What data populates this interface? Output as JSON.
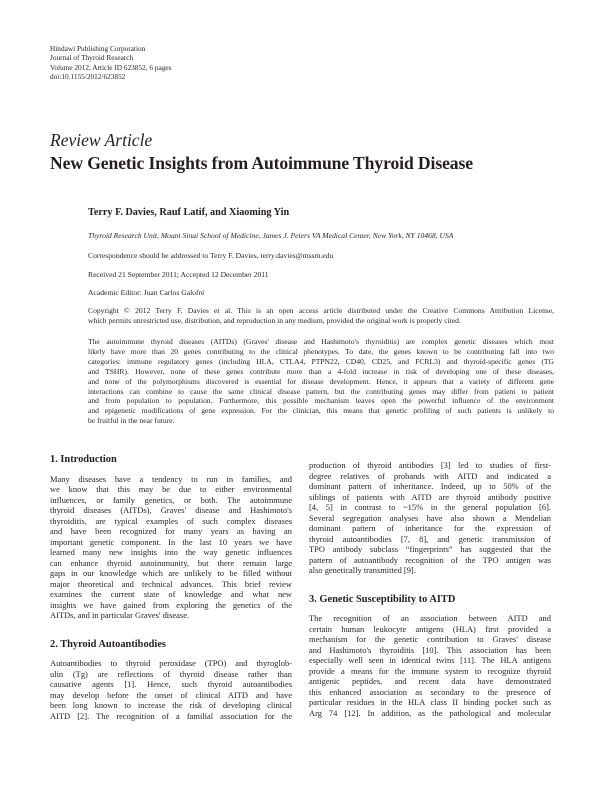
{
  "masthead": {
    "publisher": "Hindawi Publishing Corporation",
    "journal": "Journal of Thyroid Research",
    "volume": "Volume 2012, Article ID 623852, 6 pages",
    "doi": "doi:10.1155/2012/623852"
  },
  "article_type": "Review Article",
  "title": "New Genetic Insights from Autoimmune Thyroid Disease",
  "authors": "Terry F. Davies, Rauf Latif, and Xiaoming Yin",
  "affiliation": "Thyroid Research Unit, Mount Sinai School of Medicine, James J. Peters VA Medical Center, New York, NY 10468, USA",
  "correspondence": {
    "prefix": "Correspondence should be addressed to Terry F. Davies, ",
    "email": "terry.davies@mssm.edu"
  },
  "dates": "Received 21 September 2011; Accepted 12 December 2011",
  "editor": "Academic Editor: Juan Carlos Galofré",
  "copyright": [
    "Copyright © 2012 Terry F. Davies et al. This is an open access article distributed under the Creative Commons Attribution License,",
    "which permits unrestricted use, distribution, and reproduction in any medium, provided the original work is properly cited."
  ],
  "abstract": [
    "The autoimmune thyroid diseases (AITDs) (Graves' disease and Hashimoto's thyroiditis) are complex genetic diseases which most",
    "likely have more than 20 genes contributing to the clinical phenotypes. To date, the genes known to be contributing fall into two",
    "categories: immune regulatory genes (including HLA, CTLA4, PTPN22, CD40, CD25, and FCRL3) and thyroid-specific genes (TG",
    "and TSHR). However, none of these genes contribute more than a 4-fold increase in risk of developing one of these diseases,",
    "and none of the polymorphisms discovered is essential for disease development. Hence, it appears that a variety of different gene",
    "interactions can combine to cause the same clinical disease pattern, but the contributing genes may differ from patient to patient",
    "and from population to population. Furthermore, this possible mechanism leaves open the powerful influence of the environment",
    "and epigenetic modifications of gene expression. For the clinician, this means that genetic profiling of such patients is unlikely to",
    "be fruitful in the near future."
  ],
  "sections": {
    "intro": {
      "heading": "1. Introduction",
      "lines": [
        "Many diseases have a tendency to run in families, and",
        "we know that this may be due to either environmental",
        "influences, or family genetics, or both. The autoimmune",
        "thyroid diseases (AITDs), Graves' disease and Hashimoto's",
        "thyroiditis, are typical examples of such complex diseases",
        "and have been recognized for many years as having an",
        "important genetic component. In the last 10 years we have",
        "learned many new insights into the way genetic influences",
        "can enhance thyroid autoimmunity, but there remain large",
        "gaps in our knowledge which are unlikely to be filled without",
        "major theoretical and technical advances. This brief review",
        "examines the current state of knowledge and what new",
        "insights we have gained from exploring the genetics of the",
        "AITDs, and in particular Graves' disease."
      ]
    },
    "autoantibodies": {
      "heading": "2. Thyroid Autoantibodies",
      "lines": [
        "Autoantibodies to thyroid peroxidase (TPO) and thyroglob-",
        "ulin (Tg) are reflections of thyroid disease rather than",
        "causative agents [1]. Hence, such thyroid autoantibodies",
        "may develop before the onset of clinical AITD and have",
        "been long known to increase the risk of developing clinical",
        "AITD [2]. The recognition of a familial association for the"
      ]
    },
    "autoantibodies_cont": {
      "lines": [
        "production of thyroid antibodies [3] led to studies of first-",
        "degree relatives of probands with AITD and indicated a",
        "dominant pattern of inheritance. Indeed, up to 50% of the",
        "siblings of patients with AITD are thyroid antibody positive",
        "[4, 5] in contrast to ~15% in the general population [6].",
        "Several segregation analyses have also shown a Mendelian",
        "dominant pattern of inheritance for the expression of",
        "thyroid autoantibodies [7, 8], and genetic transmission of",
        "TPO antibody subclass “fingerprints” has suggested that the",
        "pattern of autoantibody recognition of the TPO antigen was",
        "also genetically transmitted [9]."
      ]
    },
    "susceptibility": {
      "heading": "3. Genetic Susceptibility to AITD",
      "lines": [
        "The recognition of an association between AITD and",
        "certain human leukocyte antigens (HLA) first provided a",
        "mechanism for the genetic contribution to Graves' disease",
        "and Hashimoto's thyroiditis [10]. This association has been",
        "especially well seen in identical twins [11]. The HLA antigens",
        "provide a means for the immune system to recognize thyroid",
        "antigenic peptides, and recent data have demonstrated",
        "this enhanced association as secondary to the presence of",
        "particular residues in the HLA class II binding pocket such as",
        "Arg 74 [12]. In addition, as the pathological and molecular"
      ]
    }
  }
}
